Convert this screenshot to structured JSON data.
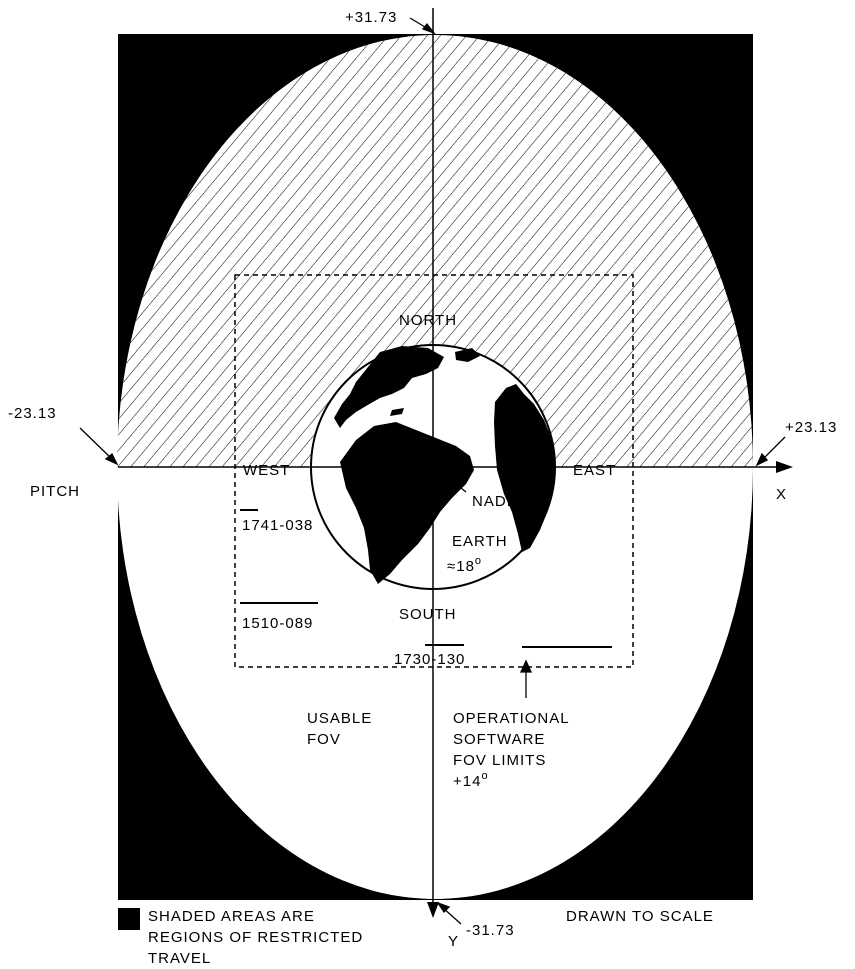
{
  "axes": {
    "top_value": "+31.73",
    "bottom_value": "-31.73",
    "left_value": "-23.13",
    "right_value": "+23.13",
    "pitch_label": "PITCH",
    "x_label": "X",
    "y_label": "Y"
  },
  "directions": {
    "north": "NORTH",
    "south": "SOUTH",
    "west": "WEST",
    "east": "EAST",
    "nadir": "NADIR"
  },
  "earth": {
    "label": "EARTH",
    "size": "≈18",
    "degree": "o"
  },
  "star_tracks": [
    {
      "id": "1741-038"
    },
    {
      "id": "1510-089"
    },
    {
      "id": "1730-130"
    }
  ],
  "usable_fov": {
    "line1": "USABLE",
    "line2": "FOV"
  },
  "software_limits": {
    "line1": "OPERATIONAL",
    "line2": "SOFTWARE",
    "line3": "FOV LIMITS",
    "line4": "+14",
    "degree": "o"
  },
  "legend": {
    "line1": "SHADED AREAS ARE",
    "line2": "REGIONS OF RESTRICTED",
    "line3": "TRAVEL"
  },
  "scale_note": "DRAWN TO SCALE",
  "colors": {
    "restricted": "#000000",
    "background": "#ffffff"
  }
}
